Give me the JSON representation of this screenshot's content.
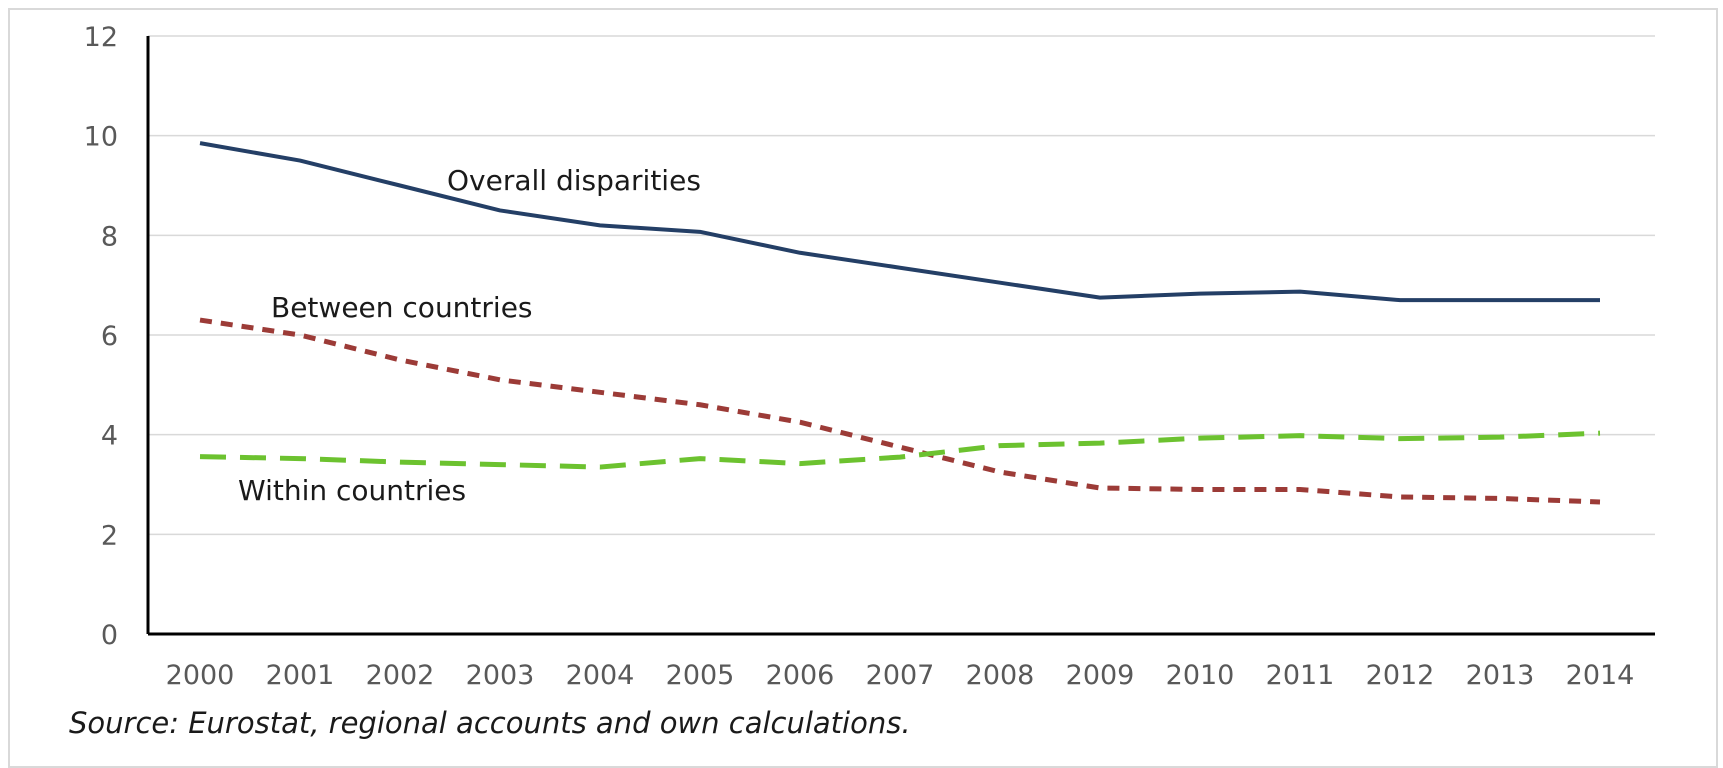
{
  "chart_data": {
    "type": "line",
    "x": [
      "2000",
      "2001",
      "2002",
      "2003",
      "2004",
      "2005",
      "2006",
      "2007",
      "2008",
      "2009",
      "2010",
      "2011",
      "2012",
      "2013",
      "2014"
    ],
    "ylim": [
      0,
      12
    ],
    "yticks": [
      0,
      2,
      4,
      6,
      8,
      10,
      12
    ],
    "grid": true,
    "series": [
      {
        "name": "Overall disparities",
        "color": "#243f66",
        "style": "solid",
        "values": [
          9.85,
          9.5,
          9.0,
          8.5,
          8.2,
          8.07,
          7.65,
          7.35,
          7.05,
          6.75,
          6.83,
          6.87,
          6.7,
          6.7,
          6.7
        ]
      },
      {
        "name": "Between countries",
        "color": "#9c3b37",
        "style": "dotted",
        "values": [
          6.3,
          6.0,
          5.5,
          5.1,
          4.85,
          4.6,
          4.25,
          3.75,
          3.25,
          2.93,
          2.9,
          2.9,
          2.75,
          2.72,
          2.65
        ]
      },
      {
        "name": "Within countries",
        "color": "#6cc22f",
        "style": "dashed",
        "values": [
          3.56,
          3.52,
          3.45,
          3.4,
          3.35,
          3.52,
          3.42,
          3.55,
          3.78,
          3.83,
          3.93,
          3.98,
          3.92,
          3.95,
          4.03
        ]
      }
    ],
    "annotations": [
      "Overall disparities",
      "Between countries",
      "Within countries"
    ]
  },
  "source": "Source: Eurostat, regional accounts and own calculations."
}
